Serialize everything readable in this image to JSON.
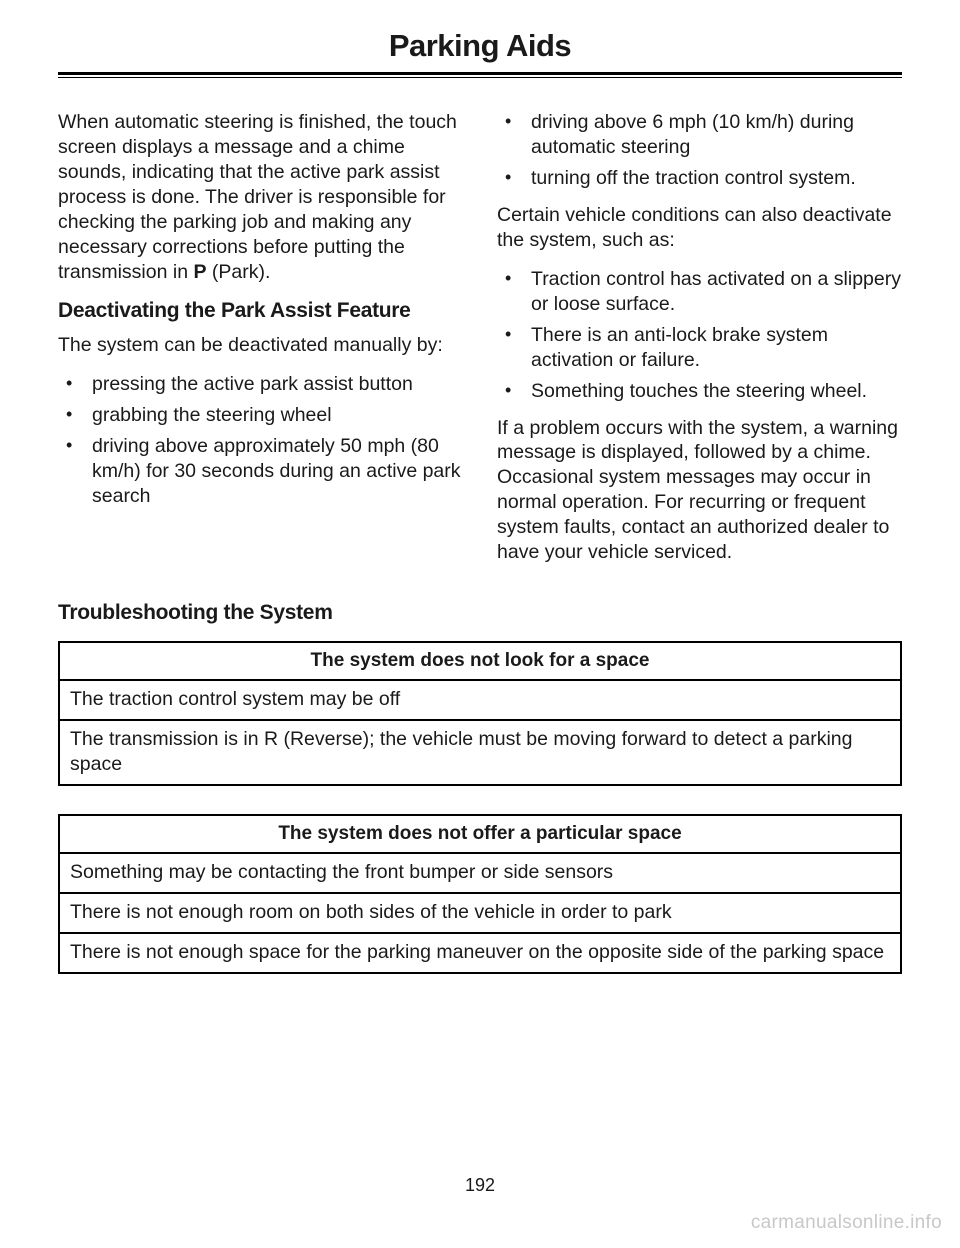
{
  "chapter_title": "Parking Aids",
  "page_number": "192",
  "watermark": "carmanualsonline.info",
  "left_col": {
    "intro_para_pre": "When automatic steering is finished, the touch screen displays a message and a chime sounds, indicating that the active park assist process is done. The driver is responsible for checking the parking job and making any necessary corrections before putting the transmission in ",
    "intro_bold": "P",
    "intro_para_post": " (Park).",
    "section_heading": "Deactivating the Park Assist Feature",
    "deact_intro": "The system can be deactivated manually by:",
    "deact_bullets": [
      "pressing the active park assist button",
      "grabbing the steering wheel",
      "driving above approximately 50 mph (80 km/h) for 30 seconds during an active park search"
    ]
  },
  "right_col": {
    "top_bullets": [
      "driving above 6 mph (10 km/h) during automatic steering",
      "turning off the traction control system."
    ],
    "cond_intro": "Certain vehicle conditions can also deactivate the system, such as:",
    "cond_bullets": [
      "Traction control has activated on a slippery or loose surface.",
      "There is an anti-lock brake system activation or failure.",
      "Something touches the steering wheel."
    ],
    "problem_para": "If a problem occurs with the system, a warning message is displayed, followed by a chime. Occasional system messages may occur in normal operation. For recurring or frequent system faults, contact an authorized dealer to have your vehicle serviced."
  },
  "troubleshoot_heading": "Troubleshooting the System",
  "table1": {
    "header": "The system does not look for a space",
    "rows": [
      "The traction control system may be off",
      "The transmission is in R (Reverse); the vehicle must be moving forward to detect a parking space"
    ]
  },
  "table2": {
    "header": "The system does not offer a particular space",
    "rows": [
      "Something may be contacting the front bumper or side sensors",
      "There is not enough room on both sides of the vehicle in order to park",
      "There is not enough space for the parking maneuver on the opposite side of the parking space"
    ]
  }
}
